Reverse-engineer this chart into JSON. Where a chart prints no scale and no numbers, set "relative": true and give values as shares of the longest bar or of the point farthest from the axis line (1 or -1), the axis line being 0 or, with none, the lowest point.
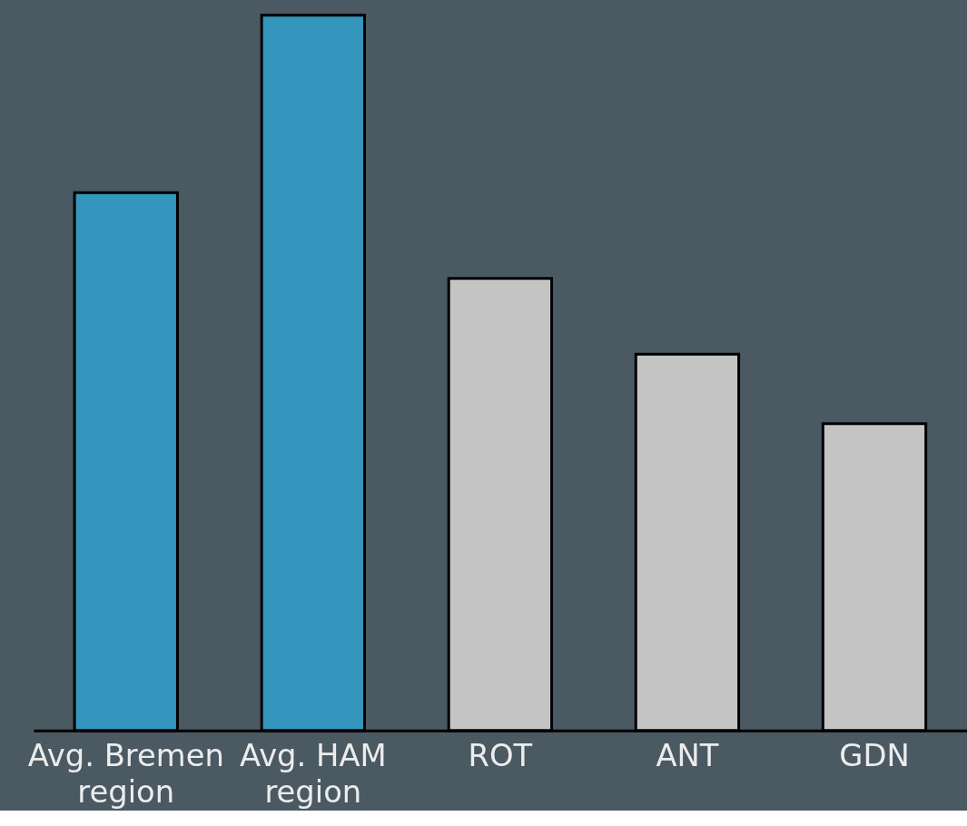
{
  "chart_data": {
    "type": "bar",
    "relative": true,
    "categories": [
      "Avg. Bremen region",
      "Avg. HAM region",
      "ROT",
      "ANT",
      "GDN"
    ],
    "values": [
      0.752,
      1,
      0.632,
      0.526,
      0.429
    ],
    "colors": [
      "#3596bd",
      "#3596bd",
      "#c4c4c4",
      "#c4c4c4",
      "#c4c4c4"
    ],
    "grid": false
  }
}
